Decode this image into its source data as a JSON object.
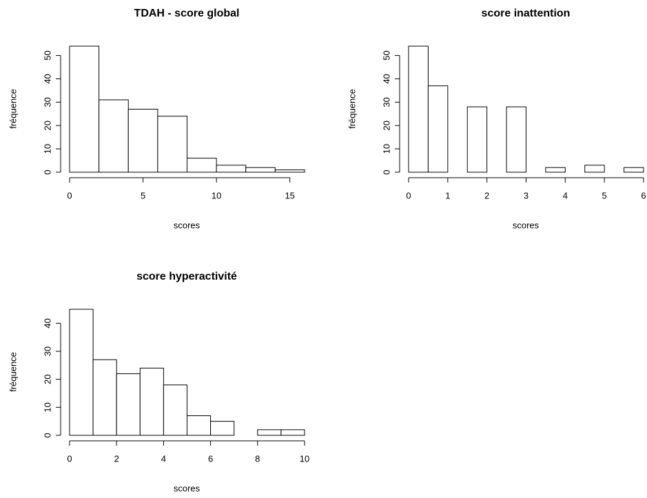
{
  "chart_data": [
    {
      "type": "histogram",
      "title": "TDAH - score global",
      "x_label": "scores",
      "y_label": "fréquence",
      "bins": [
        0,
        2,
        4,
        6,
        8,
        10,
        12,
        14,
        16
      ],
      "values": [
        54,
        31,
        27,
        24,
        6,
        3,
        2,
        1
      ],
      "color": "#ffffff",
      "xlim": [
        0,
        16
      ],
      "xticks": [
        0,
        5,
        10,
        15
      ],
      "ylim": [
        0,
        54
      ],
      "yticks": [
        0,
        10,
        20,
        30,
        40,
        50
      ],
      "grid": false
    },
    {
      "type": "histogram",
      "title": "score inattention",
      "x_label": "scores",
      "y_label": "fréquence",
      "bins": [
        0,
        0.5,
        1,
        1.5,
        2,
        2.5,
        3,
        3.5,
        4,
        4.5,
        5,
        5.5,
        6
      ],
      "values": [
        54,
        37,
        0,
        28,
        0,
        28,
        0,
        2,
        0,
        3,
        0,
        2
      ],
      "color": "#ffffff",
      "xlim": [
        0,
        6
      ],
      "xticks": [
        0,
        1,
        2,
        3,
        4,
        5,
        6
      ],
      "ylim": [
        0,
        54
      ],
      "yticks": [
        0,
        10,
        20,
        30,
        40,
        50
      ],
      "grid": false
    },
    {
      "type": "histogram",
      "title": "score hyperactivité",
      "x_label": "scores",
      "y_label": "fréquence",
      "bins": [
        0,
        1,
        2,
        3,
        4,
        5,
        6,
        7,
        8,
        9,
        10
      ],
      "values": [
        45,
        27,
        22,
        24,
        18,
        7,
        5,
        0,
        2,
        2
      ],
      "color": "#ffffff",
      "xlim": [
        0,
        10
      ],
      "xticks": [
        0,
        2,
        4,
        6,
        8,
        10
      ],
      "ylim": [
        0,
        45
      ],
      "yticks": [
        0,
        10,
        20,
        30,
        40
      ],
      "grid": false
    }
  ]
}
